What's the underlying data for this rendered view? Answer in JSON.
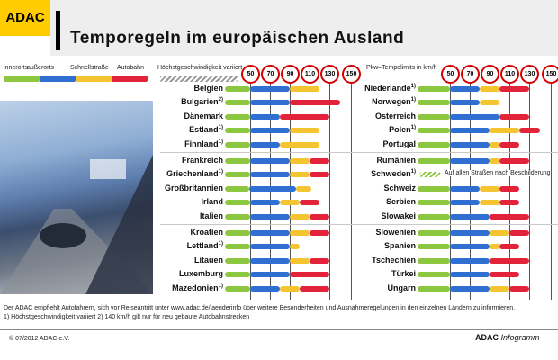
{
  "header": {
    "logo": "ADAC",
    "title": "Temporegeln im europäischen Ausland"
  },
  "legend": {
    "items": [
      {
        "label": "innerorts",
        "color": "#8dc63f"
      },
      {
        "label": "außerorts",
        "color": "#2f6fd1"
      },
      {
        "label": "Schnellstraße",
        "color": "#f5c431"
      },
      {
        "label": "Autobahn",
        "color": "#e2233a"
      }
    ],
    "variable_label": "Höchstgeschwindigkeit variiert",
    "right_label": "Pkw–Tempolimits in km/h"
  },
  "chart_data": {
    "type": "bar",
    "unit": "km/h",
    "ticks": [
      50,
      70,
      90,
      110,
      130,
      150
    ],
    "series_names": [
      "innerorts",
      "außerorts",
      "Schnellstraße",
      "Autobahn"
    ],
    "countries": [
      {
        "name": "Belgien",
        "note": "",
        "innerorts": 50,
        "ausserorts": 90,
        "schnellstrasse": 120,
        "autobahn": null
      },
      {
        "name": "Bulgarien",
        "note": "2)",
        "innerorts": 50,
        "ausserorts": 90,
        "schnellstrasse": null,
        "autobahn": 140
      },
      {
        "name": "Dänemark",
        "note": "",
        "innerorts": 50,
        "ausserorts": 80,
        "schnellstrasse": null,
        "autobahn": 130
      },
      {
        "name": "Estland",
        "note": "1)",
        "innerorts": 50,
        "ausserorts": 90,
        "schnellstrasse": 120,
        "autobahn": null
      },
      {
        "name": "Finnland",
        "note": "1)",
        "innerorts": 50,
        "ausserorts": 80,
        "schnellstrasse": 120,
        "autobahn": null
      },
      {
        "name": "Frankreich",
        "note": "",
        "innerorts": 50,
        "ausserorts": 90,
        "schnellstrasse": 110,
        "autobahn": 130
      },
      {
        "name": "Griechenland",
        "note": "1)",
        "innerorts": 50,
        "ausserorts": 90,
        "schnellstrasse": 110,
        "autobahn": 130
      },
      {
        "name": "Großbritannien",
        "note": "",
        "innerorts": 48,
        "ausserorts": 96,
        "schnellstrasse": 112,
        "autobahn": null
      },
      {
        "name": "Irland",
        "note": "",
        "innerorts": 50,
        "ausserorts": 80,
        "schnellstrasse": 100,
        "autobahn": 120
      },
      {
        "name": "Italien",
        "note": "",
        "innerorts": 50,
        "ausserorts": 90,
        "schnellstrasse": 110,
        "autobahn": 130
      },
      {
        "name": "Kroatien",
        "note": "",
        "innerorts": 50,
        "ausserorts": 90,
        "schnellstrasse": 110,
        "autobahn": 130
      },
      {
        "name": "Lettland",
        "note": "1)",
        "innerorts": 50,
        "ausserorts": 90,
        "schnellstrasse": 100,
        "autobahn": null
      },
      {
        "name": "Litauen",
        "note": "",
        "innerorts": 50,
        "ausserorts": 90,
        "schnellstrasse": 110,
        "autobahn": 130
      },
      {
        "name": "Luxemburg",
        "note": "",
        "innerorts": 50,
        "ausserorts": 90,
        "schnellstrasse": null,
        "autobahn": 130
      },
      {
        "name": "Mazedonien",
        "note": "1)",
        "innerorts": 50,
        "ausserorts": 80,
        "schnellstrasse": 100,
        "autobahn": 130
      },
      {
        "name": "Niederlande",
        "note": "1)",
        "innerorts": 50,
        "ausserorts": 80,
        "schnellstrasse": 100,
        "autobahn": 130
      },
      {
        "name": "Norwegen",
        "note": "1)",
        "innerorts": 50,
        "ausserorts": 80,
        "schnellstrasse": 100,
        "autobahn": null
      },
      {
        "name": "Österreich",
        "note": "",
        "innerorts": 50,
        "ausserorts": 100,
        "schnellstrasse": null,
        "autobahn": 130
      },
      {
        "name": "Polen",
        "note": "1)",
        "innerorts": 50,
        "ausserorts": 90,
        "schnellstrasse": 120,
        "autobahn": 140
      },
      {
        "name": "Portugal",
        "note": "",
        "innerorts": 50,
        "ausserorts": 90,
        "schnellstrasse": 100,
        "autobahn": 120
      },
      {
        "name": "Rumänien",
        "note": "",
        "innerorts": 50,
        "ausserorts": 90,
        "schnellstrasse": 100,
        "autobahn": 130
      },
      {
        "name": "Schweden",
        "note": "1)",
        "innerorts": null,
        "ausserorts": null,
        "schnellstrasse": null,
        "autobahn": null,
        "text": "Auf allen Straßen nach Beschilderung"
      },
      {
        "name": "Schweiz",
        "note": "",
        "innerorts": 50,
        "ausserorts": 80,
        "schnellstrasse": 100,
        "autobahn": 120
      },
      {
        "name": "Serbien",
        "note": "",
        "innerorts": 50,
        "ausserorts": 80,
        "schnellstrasse": 100,
        "autobahn": 120
      },
      {
        "name": "Slowakei",
        "note": "",
        "innerorts": 50,
        "ausserorts": 90,
        "schnellstrasse": null,
        "autobahn": 130
      },
      {
        "name": "Slowenien",
        "note": "",
        "innerorts": 50,
        "ausserorts": 90,
        "schnellstrasse": 110,
        "autobahn": 130
      },
      {
        "name": "Spanien",
        "note": "",
        "innerorts": 50,
        "ausserorts": 90,
        "schnellstrasse": 100,
        "autobahn": 120
      },
      {
        "name": "Tschechien",
        "note": "",
        "innerorts": 50,
        "ausserorts": 90,
        "schnellstrasse": null,
        "autobahn": 130
      },
      {
        "name": "Türkei",
        "note": "",
        "innerorts": 50,
        "ausserorts": 90,
        "schnellstrasse": null,
        "autobahn": 120
      },
      {
        "name": "Ungarn",
        "note": "",
        "innerorts": 50,
        "ausserorts": 90,
        "schnellstrasse": 110,
        "autobahn": 130
      }
    ]
  },
  "footer": {
    "note1": "Der ADAC empfiehlt Autofahrern, sich vor Reiseantritt unter www.adac.de/laenderinfo über weitere Besonderheiten und Ausnahmeregelungen in den einzelnen Ländern zu informieren.",
    "note2": "1) Höchstgeschwindigkeit variiert   2) 140 km/h gilt nur für neu gebaute Autobahnstrecken",
    "copyright": "© 07/2012 ADAC e.V.",
    "brand": "ADAC Infogramm"
  }
}
